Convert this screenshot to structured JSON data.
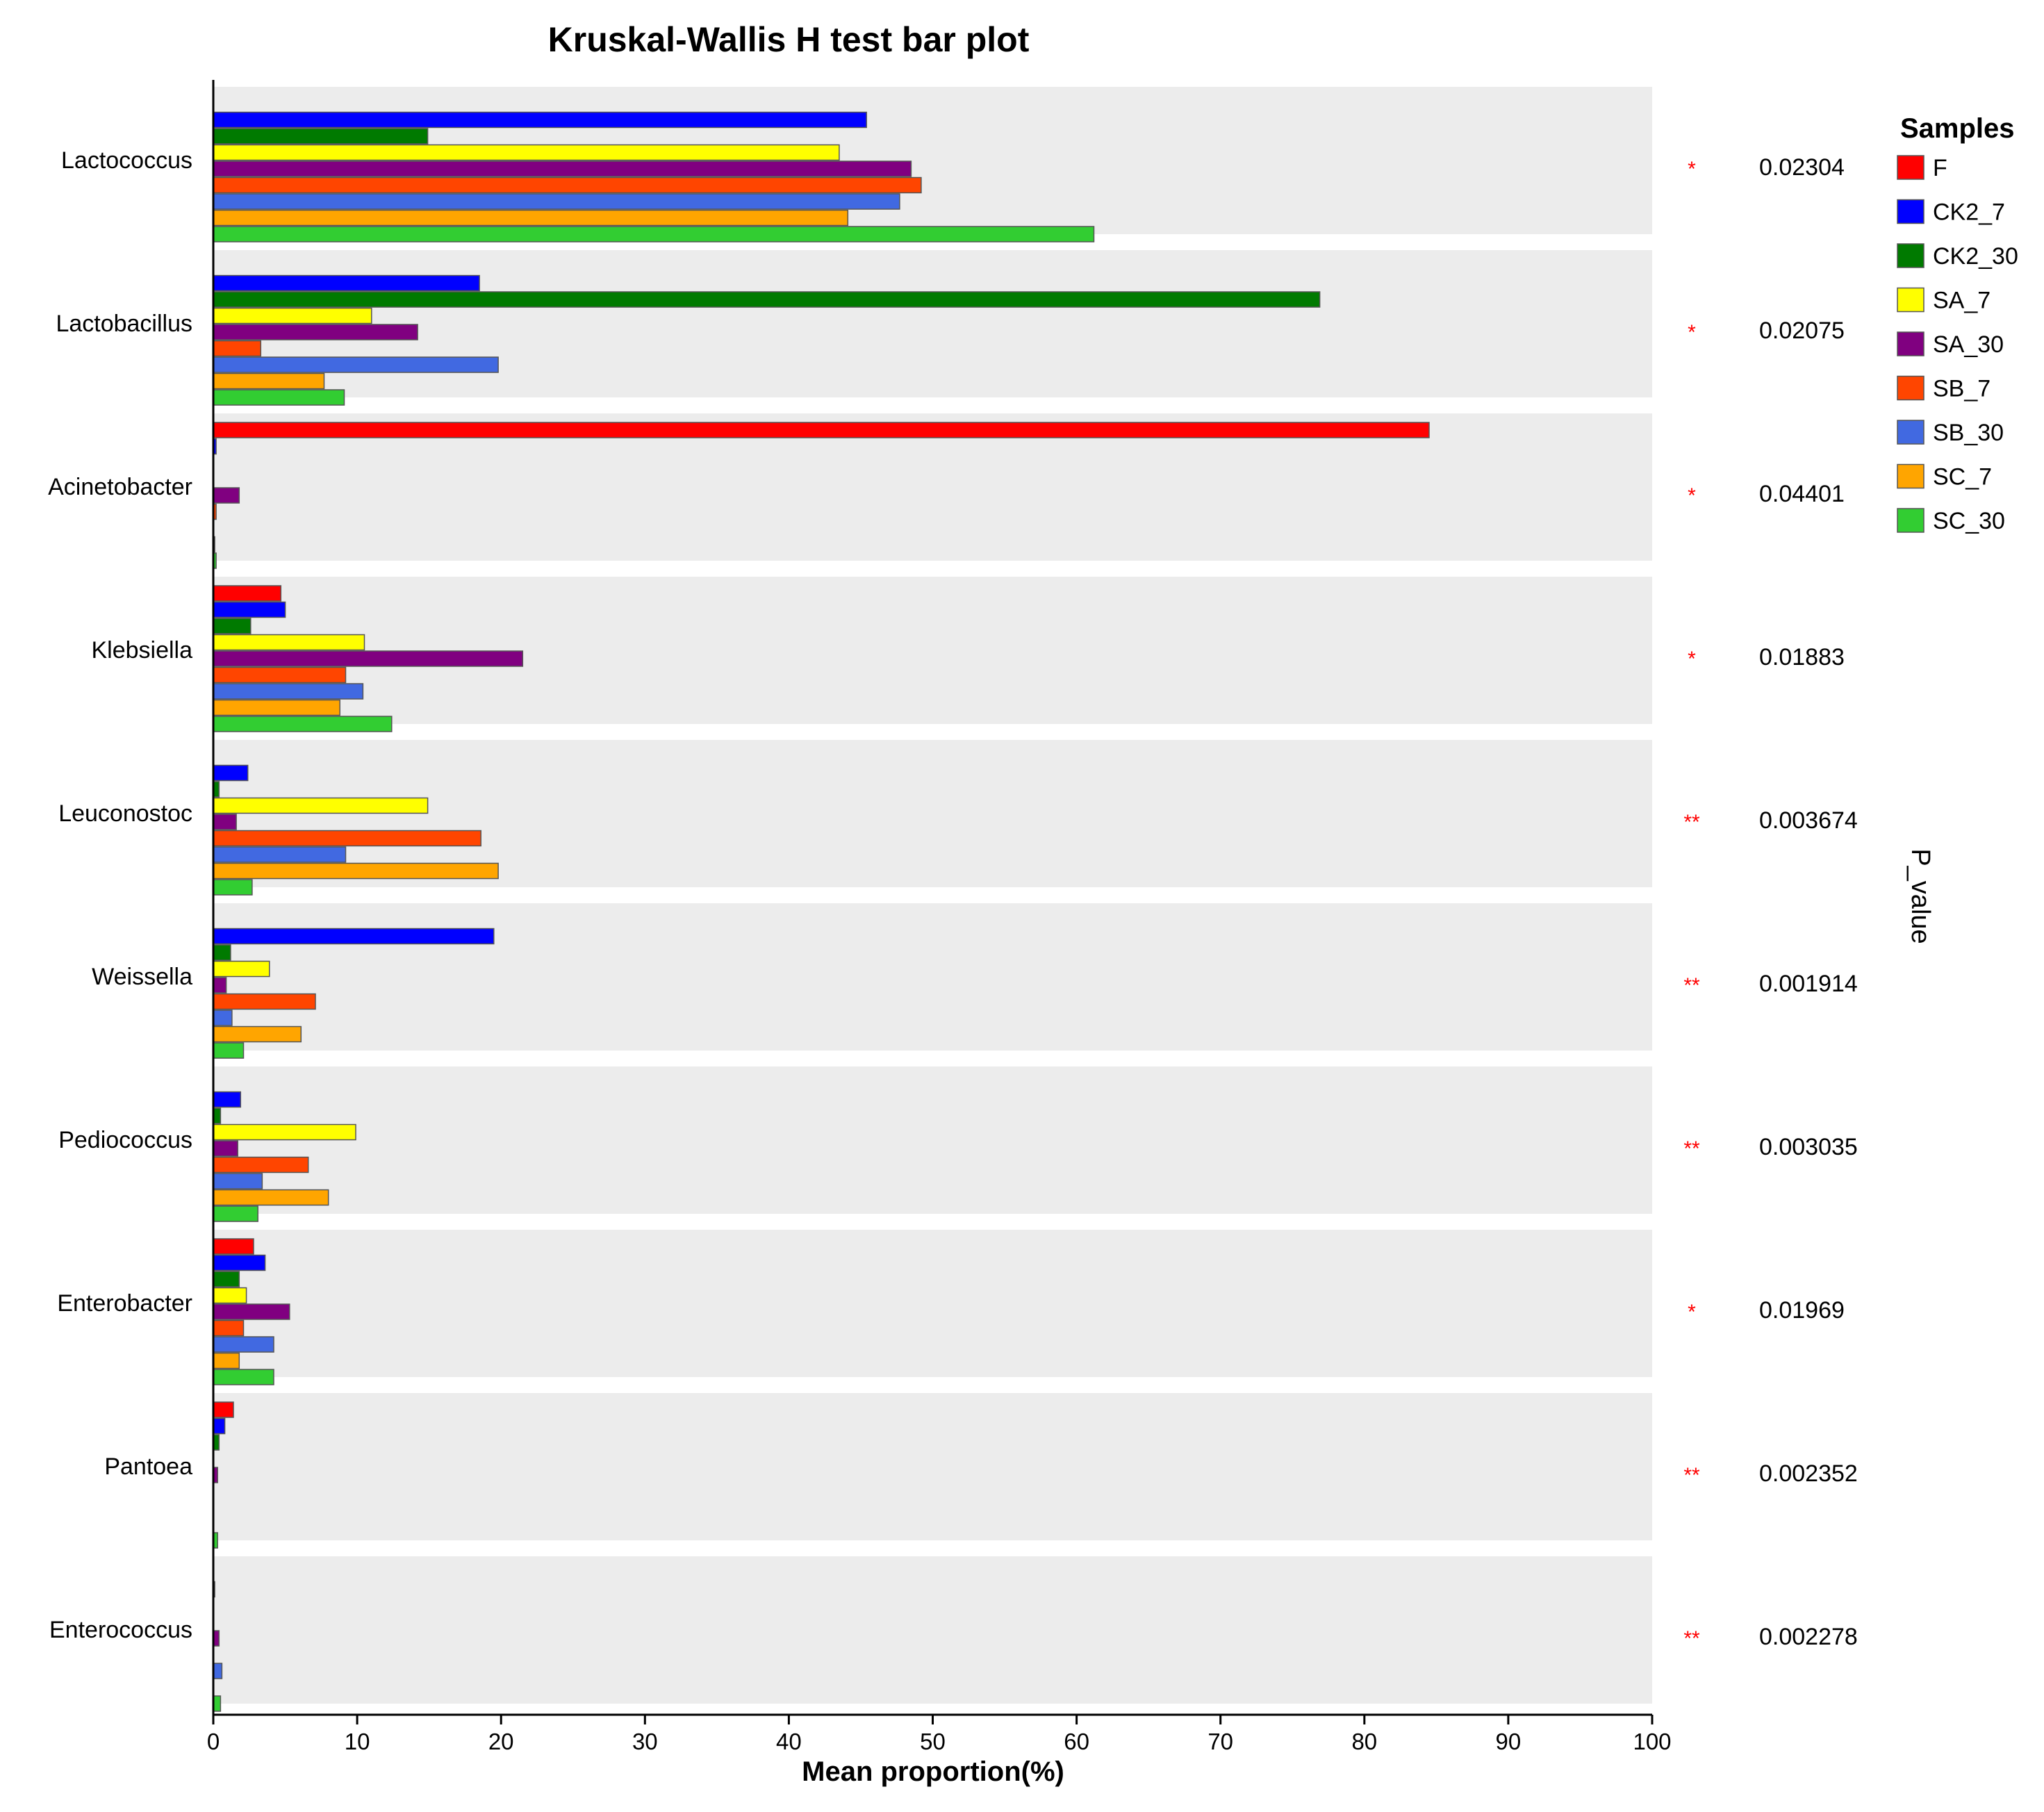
{
  "chart_data": {
    "type": "bar",
    "orientation": "horizontal",
    "title": "Kruskal-Wallis H test bar plot",
    "xlabel": "Mean proportion(%)",
    "ylabel": "",
    "xlim": [
      0,
      100
    ],
    "x_ticks": [
      0,
      10,
      20,
      30,
      40,
      50,
      60,
      70,
      80,
      90,
      100
    ],
    "legend_title": "Samples",
    "legend_position": "right",
    "pvalue_axis_label": "P_value",
    "categories": [
      "Lactococcus",
      "Lactobacillus",
      "Acinetobacter",
      "Klebsiella",
      "Leuconostoc",
      "Weissella",
      "Pediococcus",
      "Enterobacter",
      "Pantoea",
      "Enterococcus"
    ],
    "series": [
      {
        "name": "F",
        "color": "#ff0000",
        "values": [
          0.0,
          0.0,
          84.5,
          4.7,
          0.0,
          0.0,
          0.0,
          2.8,
          1.4,
          0.0
        ]
      },
      {
        "name": "CK2_7",
        "color": "#0000ff",
        "values": [
          45.4,
          18.5,
          0.2,
          5.0,
          2.4,
          19.5,
          1.9,
          3.6,
          0.8,
          0.1
        ]
      },
      {
        "name": "CK2_30",
        "color": "#007a00",
        "values": [
          14.9,
          76.9,
          0.0,
          2.6,
          0.4,
          1.2,
          0.5,
          1.8,
          0.4,
          0.0
        ]
      },
      {
        "name": "SA_7",
        "color": "#ffff00",
        "values": [
          43.5,
          11.0,
          0.0,
          10.5,
          14.9,
          3.9,
          9.9,
          2.3,
          0.0,
          0.0
        ]
      },
      {
        "name": "SA_30",
        "color": "#800080",
        "values": [
          48.5,
          14.2,
          1.8,
          21.5,
          1.6,
          0.9,
          1.7,
          5.3,
          0.3,
          0.4
        ]
      },
      {
        "name": "SB_7",
        "color": "#ff4500",
        "values": [
          49.2,
          3.3,
          0.2,
          9.2,
          18.6,
          7.1,
          6.6,
          2.1,
          0.0,
          0.0
        ]
      },
      {
        "name": "SB_30",
        "color": "#4169e1",
        "values": [
          47.7,
          19.8,
          0.0,
          10.4,
          9.2,
          1.3,
          3.4,
          4.2,
          0.0,
          0.6
        ]
      },
      {
        "name": "SC_7",
        "color": "#ffa500",
        "values": [
          44.1,
          7.7,
          0.1,
          8.8,
          19.8,
          6.1,
          8.0,
          1.8,
          0.0,
          0.0
        ]
      },
      {
        "name": "SC_30",
        "color": "#32cd32",
        "values": [
          61.2,
          9.1,
          0.2,
          12.4,
          2.7,
          2.1,
          3.1,
          4.2,
          0.3,
          0.5
        ]
      }
    ],
    "significance": [
      "*",
      "*",
      "*",
      "*",
      "**",
      "**",
      "**",
      "*",
      "**",
      "**"
    ],
    "p_values": [
      "0.02304",
      "0.02075",
      "0.04401",
      "0.01883",
      "0.003674",
      "0.001914",
      "0.003035",
      "0.01969",
      "0.002352",
      "0.002278"
    ]
  }
}
